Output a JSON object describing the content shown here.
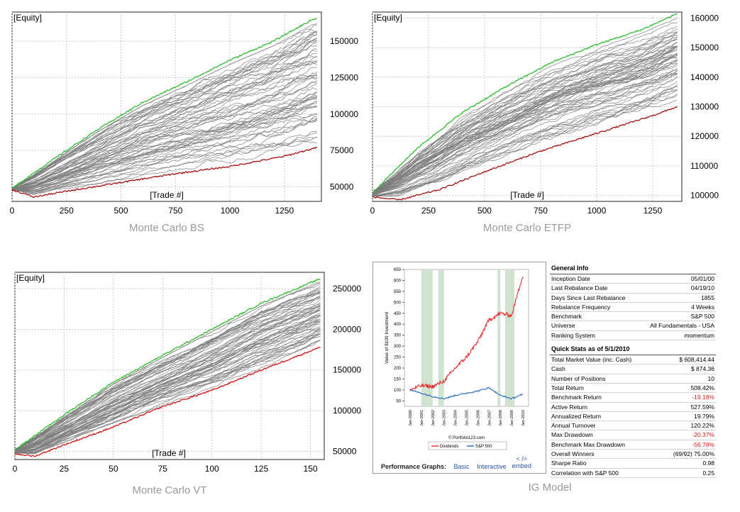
{
  "chart_data": [
    {
      "type": "line",
      "title": "",
      "subtitle": "",
      "caption": "Monte Carlo BS",
      "ylabel": "[Equity]",
      "xlabel": "[Trade #]",
      "xlim": [
        0,
        1420
      ],
      "ylim": [
        40000,
        170000
      ],
      "x_ticks": [
        0,
        250,
        500,
        750,
        1000,
        1250
      ],
      "y_ticks": [
        50000,
        75000,
        100000,
        125000,
        150000
      ],
      "grid": true,
      "legend": "none",
      "colors": {
        "best": "#1eb81e",
        "worst": "#a30000",
        "paths": "#7d7d7d"
      },
      "series": [
        {
          "values": [
            [
              0,
              49000
            ],
            [
              200,
              70000
            ],
            [
              400,
              90000
            ],
            [
              600,
              108000
            ],
            [
              800,
              122000
            ],
            [
              1000,
              137000
            ],
            [
              1200,
              150000
            ],
            [
              1380,
              165000
            ],
            [
              1400,
              165500
            ]
          ]
        },
        {
          "values": [
            [
              0,
              49500
            ],
            [
              250,
              62000
            ],
            [
              500,
              75000
            ],
            [
              750,
              87000
            ],
            [
              1000,
              98000
            ],
            [
              1250,
              108000
            ],
            [
              1400,
              113000
            ]
          ]
        },
        {
          "values": [
            [
              0,
              48000
            ],
            [
              100,
              43000
            ],
            [
              250,
              47000
            ],
            [
              500,
              53000
            ],
            [
              750,
              59000
            ],
            [
              1000,
              64000
            ],
            [
              1250,
              71000
            ],
            [
              1400,
              77000
            ]
          ]
        }
      ]
    },
    {
      "type": "line",
      "title": "",
      "subtitle": "",
      "caption": "Monte Carlo ETFP",
      "ylabel": "[Equity]",
      "xlabel": "[Trade #]",
      "xlim": [
        0,
        1380
      ],
      "ylim": [
        98000,
        162000
      ],
      "x_ticks": [
        0,
        250,
        500,
        750,
        1000,
        1250
      ],
      "y_ticks": [
        100000,
        110000,
        120000,
        130000,
        140000,
        150000,
        160000
      ],
      "grid": true,
      "legend": "none",
      "colors": {
        "best": "#1eb81e",
        "worst": "#a30000",
        "paths": "#7d7d7d"
      },
      "series": [
        {
          "values": [
            [
              0,
              101000
            ],
            [
              200,
              116000
            ],
            [
              400,
              128000
            ],
            [
              600,
              137000
            ],
            [
              800,
              145000
            ],
            [
              1000,
              151000
            ],
            [
              1200,
              156000
            ],
            [
              1360,
              161500
            ]
          ]
        },
        {
          "values": [
            [
              0,
              100500
            ],
            [
              250,
              111000
            ],
            [
              500,
              120000
            ],
            [
              750,
              127000
            ],
            [
              1000,
              133000
            ],
            [
              1250,
              139000
            ],
            [
              1360,
              141000
            ]
          ]
        },
        {
          "values": [
            [
              0,
              99500
            ],
            [
              120,
              98500
            ],
            [
              300,
              102000
            ],
            [
              500,
              108000
            ],
            [
              750,
              115000
            ],
            [
              1000,
              121000
            ],
            [
              1250,
              127000
            ],
            [
              1360,
              130000
            ]
          ]
        }
      ]
    },
    {
      "type": "line",
      "title": "",
      "subtitle": "",
      "caption": "Monte Carlo VT",
      "ylabel": "[Equity]",
      "xlabel": "[Trade #]",
      "xlim": [
        0,
        157
      ],
      "ylim": [
        40000,
        270000
      ],
      "x_ticks": [
        0,
        25,
        50,
        75,
        100,
        125,
        150
      ],
      "y_ticks": [
        50000,
        100000,
        150000,
        200000,
        250000
      ],
      "grid": true,
      "legend": "none",
      "colors": {
        "best": "#1eb81e",
        "worst": "#d10000",
        "paths": "#7d7d7d"
      },
      "series": [
        {
          "values": [
            [
              0,
              52000
            ],
            [
              25,
              95000
            ],
            [
              50,
              135000
            ],
            [
              75,
              168000
            ],
            [
              100,
              200000
            ],
            [
              125,
              232000
            ],
            [
              155,
              262000
            ]
          ]
        },
        {
          "values": [
            [
              0,
              50000
            ],
            [
              25,
              80000
            ],
            [
              50,
              110000
            ],
            [
              75,
              135000
            ],
            [
              100,
              160000
            ],
            [
              125,
              185000
            ],
            [
              155,
              215000
            ]
          ]
        },
        {
          "values": [
            [
              0,
              47000
            ],
            [
              10,
              44000
            ],
            [
              25,
              58000
            ],
            [
              50,
              80000
            ],
            [
              75,
              105000
            ],
            [
              100,
              125000
            ],
            [
              125,
              150000
            ],
            [
              155,
              178000
            ]
          ]
        }
      ]
    },
    {
      "type": "line",
      "title": "",
      "subtitle": "",
      "ylabel": "Value of $100 Investment",
      "xlabel": "",
      "watermark": "© Portfolio123.com",
      "x": [
        "Jan-2000",
        "Jan-2001",
        "Jan-2002",
        "Jan-2003",
        "Jan-2004",
        "Jan-2005",
        "Jan-2006",
        "Jan-2007",
        "Jan-2008",
        "Jan-2009",
        "Jan-2010"
      ],
      "ylim": [
        25,
        650
      ],
      "y_ticks": [
        50,
        100,
        150,
        200,
        250,
        300,
        350,
        400,
        450,
        500,
        550,
        600,
        650
      ],
      "grid": false,
      "legend": "bottom",
      "shaded_periods": [
        [
          "Jan-2001",
          "Jan-2002"
        ],
        [
          "Jul-2002",
          "Jan-2003"
        ],
        [
          "Oct-2007",
          "Jan-2008"
        ],
        [
          "Jun-2008",
          "Apr-2009"
        ]
      ],
      "series": [
        {
          "name": "Dividends",
          "color": "#e53030",
          "values": [
            100,
            120,
            115,
            140,
            200,
            250,
            320,
            420,
            450,
            440,
            625
          ]
        },
        {
          "name": "S&P 500",
          "color": "#2f6fc0",
          "values": [
            100,
            85,
            70,
            60,
            75,
            85,
            95,
            110,
            75,
            60,
            80
          ]
        }
      ]
    }
  ],
  "panels": {
    "ig_caption": "IG Model",
    "perf_label": "Performance Graphs:",
    "perf_links": [
      "Basic",
      "Interactive"
    ],
    "embed_code": "< />",
    "embed_label": "embed"
  },
  "general_info": {
    "title": "General Info",
    "rows": [
      [
        "Inception Date",
        "05/01/00"
      ],
      [
        "Last Rebalance Date",
        "04/19/10"
      ],
      [
        "Days Since Last Rebalance",
        "1855"
      ],
      [
        "Rebalance Frequency",
        "4 Weeks"
      ],
      [
        "Benchmark",
        "S&P 500"
      ],
      [
        "Universe",
        "All Fundamentals - USA"
      ],
      [
        "Ranking System",
        "momentum"
      ]
    ]
  },
  "quick_stats": {
    "title": "Quick Stats as of 5/1/2010",
    "rows": [
      [
        "Total Market Value (inc. Cash)",
        "$ 608,414.44"
      ],
      [
        "Cash",
        "$ 874.36"
      ],
      [
        "Number of Positions",
        "10"
      ],
      [
        "Total Return",
        "508.42%"
      ],
      [
        "Benchmark Return",
        "-19.18%"
      ],
      [
        "Active Return",
        "527.59%"
      ],
      [
        "Annualized Return",
        "19.79%"
      ],
      [
        "Annual Turnover",
        "120.22%"
      ],
      [
        "Max Drawdown",
        "-20.37%"
      ],
      [
        "Benchmark Max Drawdown",
        "-56.78%"
      ],
      [
        "Overall Winners",
        "(69/92) 75.00%"
      ],
      [
        "Sharpe Ratio",
        "0.98"
      ],
      [
        "Correlation with S&P 500",
        "0.25"
      ]
    ]
  }
}
